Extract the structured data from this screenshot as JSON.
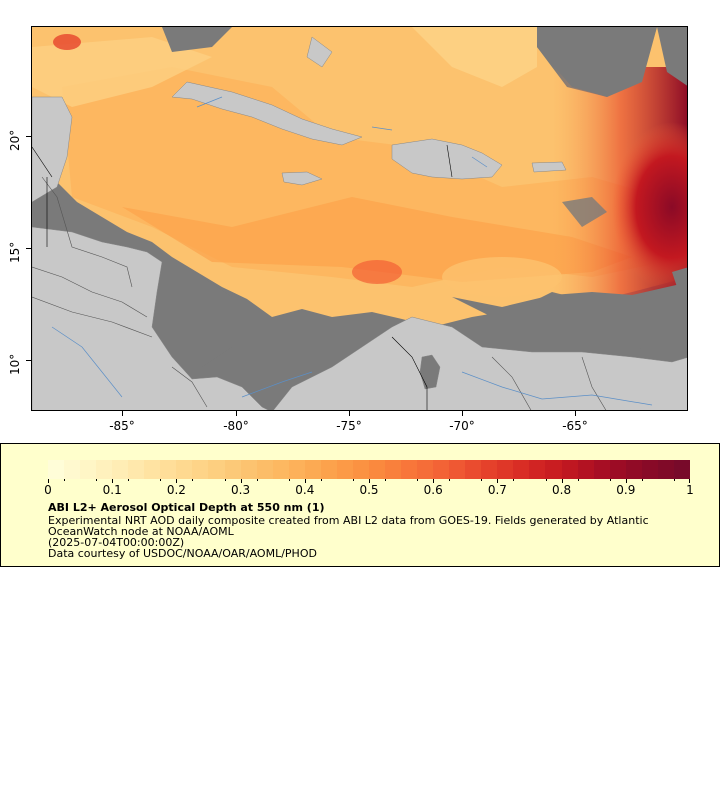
{
  "map": {
    "x_ticks": [
      "-85°",
      "-80°",
      "-75°",
      "-70°",
      "-65°"
    ],
    "y_ticks": [
      "10°",
      "15°",
      "20°"
    ],
    "extent": {
      "lon_min": -89,
      "lon_max": -59.8,
      "lat_min": 8.2,
      "lat_max": 25.4
    },
    "colors": {
      "land": "#c8c8c8",
      "missing": "#7a7a7a",
      "water_lines": "#5b8fc7",
      "borders": "#555555"
    }
  },
  "colorbar": {
    "min": 0,
    "max": 1,
    "tick_labels": [
      "0",
      "0.1",
      "0.2",
      "0.3",
      "0.4",
      "0.5",
      "0.6",
      "0.7",
      "0.8",
      "0.9",
      "1"
    ],
    "tick_values": [
      0,
      0.1,
      0.2,
      0.3,
      0.4,
      0.5,
      0.6,
      0.7,
      0.8,
      0.9,
      1
    ],
    "colors": [
      "#fffdd8",
      "#fff4c2",
      "#ffe9ad",
      "#ffdc96",
      "#fdd082",
      "#fcc26e",
      "#fdb45c",
      "#fca24c",
      "#fb8e3f",
      "#f8773a",
      "#f25f35",
      "#e6432c",
      "#d72a24",
      "#c31820",
      "#a60d24",
      "#8b0a26",
      "#780a2a"
    ]
  },
  "legend": {
    "title": "ABI L2+ Aerosol Optical Depth at 550 nm (1)",
    "desc_line1": "Experimental NRT AOD daily composite created from ABI L2 data from GOES-19. Fields generated by Atlantic",
    "desc_line2": "OceanWatch node at NOAA/AOML",
    "date": "(2025-07-04T00:00:00Z)",
    "credit": "Data courtesy of USDOC/NOAA/OAR/AOML/PHOD"
  }
}
